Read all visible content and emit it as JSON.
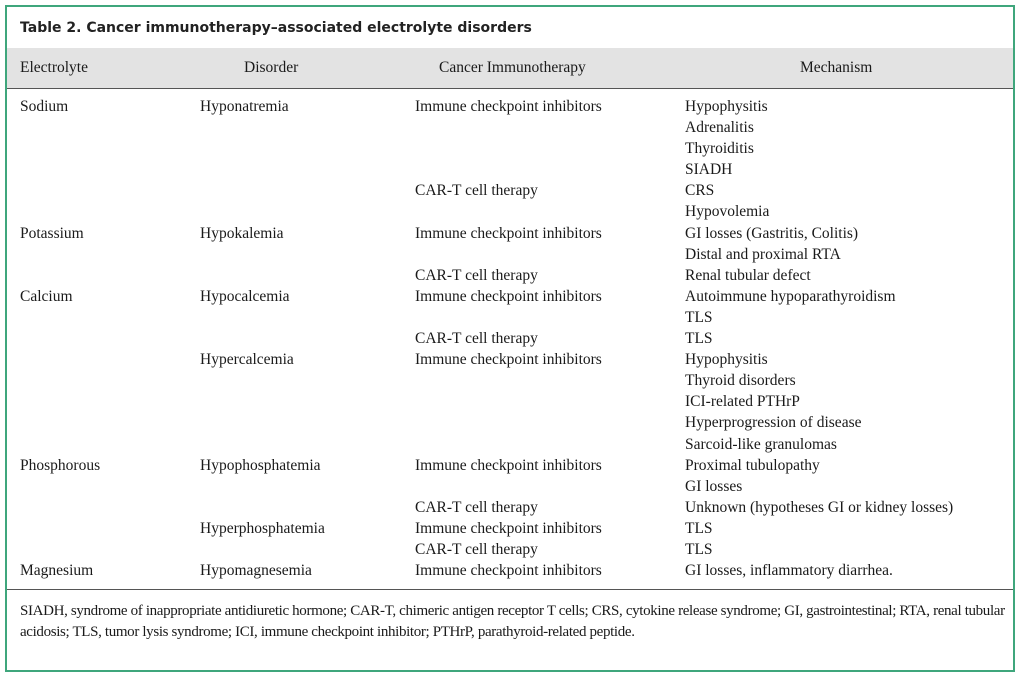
{
  "title": "Table 2.   Cancer immunotherapy–associated electrolyte disorders",
  "headers": [
    "Electrolyte",
    "Disorder",
    "Cancer Immunotherapy",
    "Mechanism"
  ],
  "rows": [
    [
      "Sodium",
      "Hyponatremia",
      "Immune checkpoint inhibitors",
      "Hypophysitis"
    ],
    [
      "",
      "",
      "",
      "Adrenalitis"
    ],
    [
      "",
      "",
      "",
      "Thyroiditis"
    ],
    [
      "",
      "",
      "",
      "SIADH"
    ],
    [
      "",
      "",
      "CAR-T cell therapy",
      "CRS"
    ],
    [
      "",
      "",
      "",
      "Hypovolemia"
    ],
    [
      "Potassium",
      "Hypokalemia",
      "Immune checkpoint inhibitors",
      "GI losses (Gastritis, Colitis)"
    ],
    [
      "",
      "",
      "",
      "Distal and proximal RTA"
    ],
    [
      "",
      "",
      "CAR-T cell therapy",
      "Renal tubular defect"
    ],
    [
      "Calcium",
      "Hypocalcemia",
      "Immune checkpoint inhibitors",
      "Autoimmune hypoparathyroidism"
    ],
    [
      "",
      "",
      "",
      "TLS"
    ],
    [
      "",
      "",
      "CAR-T cell therapy",
      "TLS"
    ],
    [
      "",
      "Hypercalcemia",
      "Immune checkpoint inhibitors",
      "Hypophysitis"
    ],
    [
      "",
      "",
      "",
      "Thyroid disorders"
    ],
    [
      "",
      "",
      "",
      "ICI-related PTHrP"
    ],
    [
      "",
      "",
      "",
      "Hyperprogression of disease"
    ],
    [
      "",
      "",
      "",
      "Sarcoid-like granulomas"
    ],
    [
      "Phosphorous",
      "Hypophosphatemia",
      "Immune checkpoint inhibitors",
      "Proximal tubulopathy"
    ],
    [
      "",
      "",
      "",
      "GI losses"
    ],
    [
      "",
      "",
      "CAR-T cell therapy",
      "Unknown (hypotheses GI or kidney losses)"
    ],
    [
      "",
      "Hyperphosphatemia",
      "Immune checkpoint inhibitors",
      "TLS"
    ],
    [
      "",
      "",
      "CAR-T cell therapy",
      "TLS"
    ],
    [
      "Magnesium",
      "Hypomagnesemia",
      "Immune checkpoint inhibitors",
      "GI losses, inflammatory diarrhea."
    ]
  ],
  "footnote": "SIADH, syndrome of inappropriate antidiuretic hormone; CAR-T, chimeric antigen receptor T cells; CRS, cytokine release syndrome; GI, gastrointestinal; RTA, renal tubular acidosis; TLS, tumor lysis syndrome; ICI, immune checkpoint inhibitor; PTHrP, parathyroid-related peptide.",
  "colors": {
    "border": "#3fa67c",
    "header_bg": "#e3e3e3"
  }
}
